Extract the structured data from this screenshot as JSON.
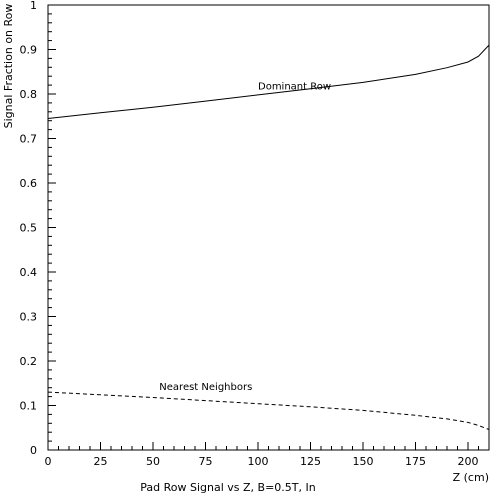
{
  "chart_data": {
    "type": "line",
    "title": "",
    "xlabel": "Z (cm)",
    "ylabel": "Signal Fraction on Row",
    "caption": "Pad Row Signal vs Z, B=0.5T, In",
    "xlim": [
      0,
      210
    ],
    "ylim": [
      0,
      1
    ],
    "x_ticks": [
      0,
      25,
      50,
      75,
      100,
      125,
      150,
      175,
      200
    ],
    "y_ticks": [
      0,
      0.1,
      0.2,
      0.3,
      0.4,
      0.5,
      0.6,
      0.7,
      0.8,
      0.9,
      1
    ],
    "x_tick_labels": [
      "0",
      "25",
      "50",
      "75",
      "100",
      "125",
      "150",
      "175",
      "200"
    ],
    "y_tick_labels": [
      "0",
      "0.1",
      "0.2",
      "0.3",
      "0.4",
      "0.5",
      "0.6",
      "0.7",
      "0.8",
      "0.9",
      "1"
    ],
    "grid": false,
    "series": [
      {
        "name": "Dominant Row",
        "style": "solid",
        "color": "#000000",
        "x": [
          0,
          25,
          50,
          75,
          100,
          125,
          150,
          175,
          190,
          200,
          205,
          210
        ],
        "y": [
          0.745,
          0.758,
          0.77,
          0.784,
          0.798,
          0.812,
          0.826,
          0.844,
          0.859,
          0.872,
          0.885,
          0.91
        ]
      },
      {
        "name": "Nearest Neighbors",
        "style": "dashed",
        "color": "#000000",
        "x": [
          0,
          25,
          50,
          75,
          100,
          125,
          150,
          175,
          190,
          200,
          205,
          210
        ],
        "y": [
          0.13,
          0.124,
          0.118,
          0.111,
          0.104,
          0.097,
          0.089,
          0.078,
          0.07,
          0.062,
          0.055,
          0.046
        ]
      }
    ],
    "annotations": [
      {
        "text": "Dominant Row",
        "x": 100,
        "y": 0.81
      },
      {
        "text": "Nearest Neighbors",
        "x": 53,
        "y": 0.135
      }
    ]
  }
}
